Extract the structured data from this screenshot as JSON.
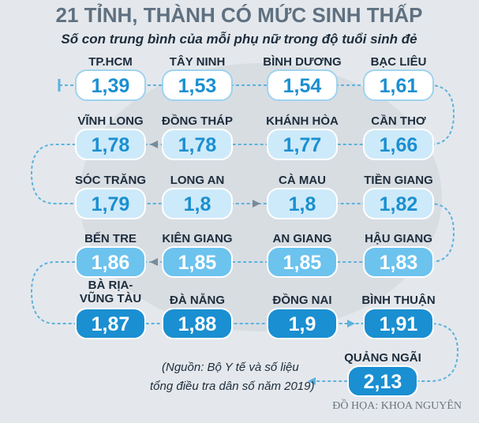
{
  "header": {
    "title": "21 TỈNH, THÀNH CÓ MỨC SINH THẤP",
    "subtitle": "Số con trung bình của mỗi phụ nữ trong độ tuổi sinh đẻ"
  },
  "rows": [
    {
      "items": [
        {
          "name": "TP.HCM",
          "value": "1,39"
        },
        {
          "name": "TÂY NINH",
          "value": "1,53"
        },
        {
          "name": "BÌNH DƯƠNG",
          "value": "1,54"
        },
        {
          "name": "BẠC LIÊU",
          "value": "1,61"
        }
      ]
    },
    {
      "items": [
        {
          "name": "VĨNH LONG",
          "value": "1,78"
        },
        {
          "name": "ĐỒNG THÁP",
          "value": "1,78"
        },
        {
          "name": "KHÁNH HÒA",
          "value": "1,77"
        },
        {
          "name": "CẦN THƠ",
          "value": "1,66"
        }
      ]
    },
    {
      "items": [
        {
          "name": "SÓC TRĂNG",
          "value": "1,79"
        },
        {
          "name": "LONG AN",
          "value": "1,8"
        },
        {
          "name": "CÀ MAU",
          "value": "1,8"
        },
        {
          "name": "TIỀN GIANG",
          "value": "1,82"
        }
      ]
    },
    {
      "items": [
        {
          "name": "BẾN TRE",
          "value": "1,86"
        },
        {
          "name": "KIÊN GIANG",
          "value": "1,85"
        },
        {
          "name": "AN GIANG",
          "value": "1,85"
        },
        {
          "name": "HẬU GIANG",
          "value": "1,83"
        }
      ]
    },
    {
      "items": [
        {
          "name": [
            "BÀ RỊA-",
            "VŨNG TÀU"
          ],
          "value": "1,87"
        },
        {
          "name": "ĐÀ NẴNG",
          "value": "1,88"
        },
        {
          "name": "ĐỒNG NAI",
          "value": "1,9"
        },
        {
          "name": "BÌNH THUẬN",
          "value": "1,91"
        }
      ]
    },
    {
      "items": [
        {
          "name": "QUẢNG NGÃI",
          "value": "2,13"
        }
      ]
    }
  ],
  "source": [
    "(Nguồn: Bộ Y tế và số liệu",
    "tổng điều tra dân số năm 2019)"
  ],
  "credit": "ĐỒ HỌA: KHOA NGUYÊN"
}
